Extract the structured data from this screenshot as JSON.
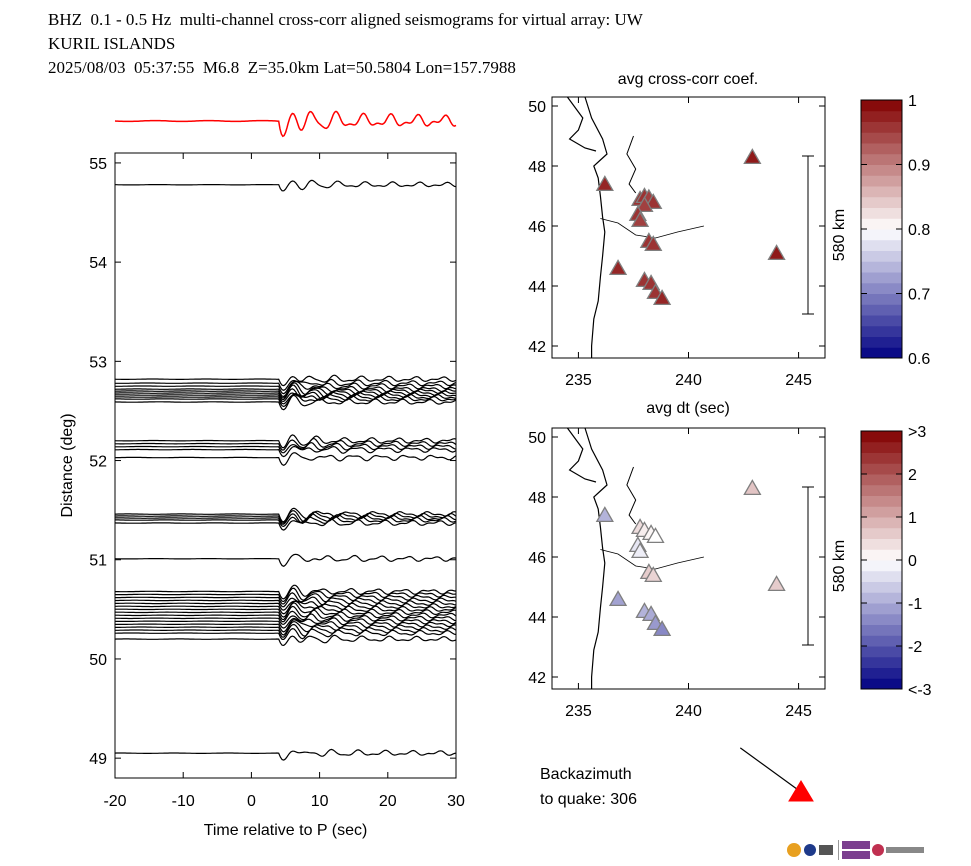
{
  "header": {
    "line1": "BHZ  0.1 - 0.5 Hz  multi-channel cross-corr aligned seismograms for virtual array: UW",
    "line2": "KURIL ISLANDS",
    "line3": "2025/08/03  05:37:55  M6.8  Z=35.0km Lat=50.5804 Lon=157.7988"
  },
  "colors": {
    "trace": "#000000",
    "stack": "#ff0000",
    "station_edge": "#7f7f7f"
  },
  "chart_data": [
    {
      "type": "line",
      "name": "seismogram record section",
      "xlabel": "Time relative to P (sec)",
      "ylabel": "Distance (deg)",
      "xlim": [
        -20,
        30
      ],
      "ylim": [
        48.8,
        55.1
      ],
      "xticks": [
        -20,
        -10,
        0,
        10,
        20,
        30
      ],
      "yticks": [
        49,
        50,
        51,
        52,
        53,
        54,
        55
      ],
      "stack_trace": {
        "label": "",
        "color": "#ff0000",
        "onset_sec": 4.5
      },
      "trace_distances_deg": [
        54.78,
        52.82,
        52.78,
        52.75,
        52.72,
        52.7,
        52.68,
        52.66,
        52.64,
        52.62,
        52.59,
        52.2,
        52.17,
        52.14,
        52.11,
        52.03,
        51.46,
        51.44,
        51.42,
        51.4,
        51.37,
        51.01,
        50.68,
        50.65,
        50.62,
        50.59,
        50.56,
        50.53,
        50.5,
        50.47,
        50.44,
        50.41,
        50.38,
        50.35,
        50.32,
        50.29,
        50.26,
        50.2,
        49.05
      ]
    },
    {
      "type": "scatter",
      "title": "avg cross-corr coef.",
      "xlabel": "avg dt (sec)",
      "xlim": [
        233.8,
        246.2
      ],
      "ylim": [
        41.6,
        50.3
      ],
      "xticks": [
        235,
        240,
        245
      ],
      "yticks": [
        42,
        44,
        46,
        48,
        50
      ],
      "scale_bar_label": "580 km",
      "colorbar": {
        "min": 0.6,
        "max": 1.0,
        "ticks": [
          "0.6",
          "0.7",
          "0.8",
          "0.9",
          "1"
        ]
      },
      "points": [
        {
          "lon": 236.2,
          "lat": 47.4,
          "value": 0.97
        },
        {
          "lon": 237.8,
          "lat": 46.9,
          "value": 0.96
        },
        {
          "lon": 238.0,
          "lat": 47.0,
          "value": 0.96
        },
        {
          "lon": 238.2,
          "lat": 46.95,
          "value": 0.95
        },
        {
          "lon": 238.4,
          "lat": 46.8,
          "value": 0.96
        },
        {
          "lon": 238.0,
          "lat": 46.7,
          "value": 0.95
        },
        {
          "lon": 237.7,
          "lat": 46.4,
          "value": 0.96
        },
        {
          "lon": 237.8,
          "lat": 46.2,
          "value": 0.95
        },
        {
          "lon": 238.2,
          "lat": 45.5,
          "value": 0.96
        },
        {
          "lon": 238.4,
          "lat": 45.4,
          "value": 0.96
        },
        {
          "lon": 236.8,
          "lat": 44.6,
          "value": 0.97
        },
        {
          "lon": 238.0,
          "lat": 44.2,
          "value": 0.96
        },
        {
          "lon": 238.3,
          "lat": 44.1,
          "value": 0.96
        },
        {
          "lon": 238.5,
          "lat": 43.8,
          "value": 0.96
        },
        {
          "lon": 238.8,
          "lat": 43.6,
          "value": 0.97
        },
        {
          "lon": 242.9,
          "lat": 48.3,
          "value": 0.98
        },
        {
          "lon": 244.0,
          "lat": 45.1,
          "value": 0.98
        }
      ]
    },
    {
      "type": "scatter",
      "title": "",
      "xlabel": "",
      "xlim": [
        233.8,
        246.2
      ],
      "ylim": [
        41.6,
        50.3
      ],
      "xticks": [
        235,
        240,
        245
      ],
      "yticks": [
        42,
        44,
        46,
        48,
        50
      ],
      "scale_bar_label": "580 km",
      "colorbar": {
        "min": -3,
        "max": 3,
        "ticks": [
          "<-3",
          "-2",
          "-1",
          "0",
          "1",
          "2",
          ">3"
        ]
      },
      "points": [
        {
          "lon": 236.2,
          "lat": 47.4,
          "value": -0.9
        },
        {
          "lon": 237.8,
          "lat": 47.0,
          "value": 0.4
        },
        {
          "lon": 238.0,
          "lat": 46.9,
          "value": 0.2
        },
        {
          "lon": 238.3,
          "lat": 46.8,
          "value": 0.1
        },
        {
          "lon": 238.5,
          "lat": 46.7,
          "value": 0.0
        },
        {
          "lon": 237.7,
          "lat": 46.4,
          "value": -0.3
        },
        {
          "lon": 237.8,
          "lat": 46.2,
          "value": -0.2
        },
        {
          "lon": 238.2,
          "lat": 45.5,
          "value": 0.6
        },
        {
          "lon": 238.4,
          "lat": 45.4,
          "value": 0.5
        },
        {
          "lon": 236.8,
          "lat": 44.6,
          "value": -1.1
        },
        {
          "lon": 238.0,
          "lat": 44.2,
          "value": -0.9
        },
        {
          "lon": 238.3,
          "lat": 44.1,
          "value": -1.0
        },
        {
          "lon": 238.5,
          "lat": 43.8,
          "value": -1.2
        },
        {
          "lon": 238.8,
          "lat": 43.6,
          "value": -1.4
        },
        {
          "lon": 242.9,
          "lat": 48.3,
          "value": 0.7
        },
        {
          "lon": 244.0,
          "lat": 45.1,
          "value": 0.6
        }
      ]
    }
  ],
  "backazimuth": {
    "label_line1": "Backazimuth",
    "label_line2": "to quake:  306",
    "value_deg": 306
  }
}
